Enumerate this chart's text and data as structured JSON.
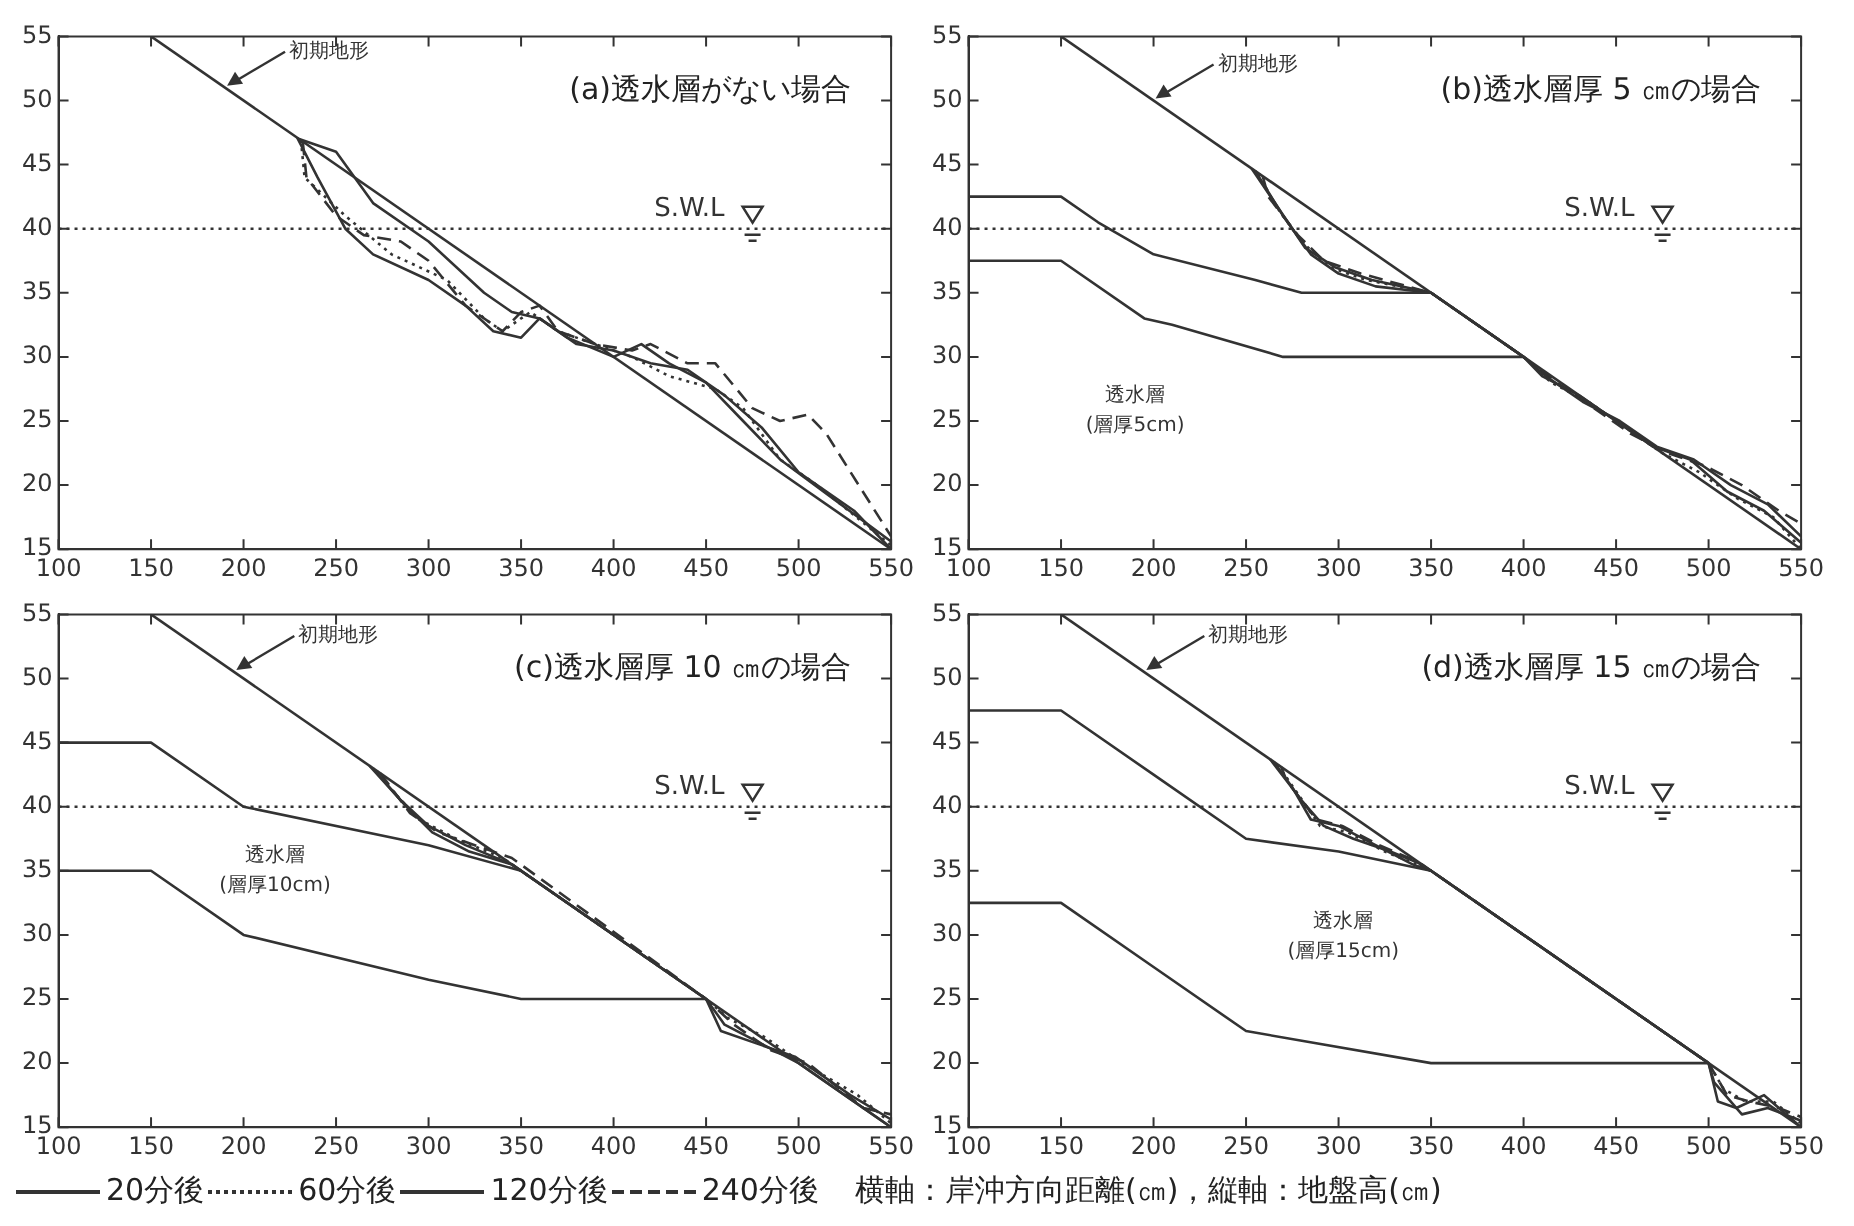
{
  "chart_data": [
    {
      "type": "line",
      "title": "(a)透水層がない場合",
      "xlim": [
        100,
        550
      ],
      "ylim": [
        15,
        55
      ],
      "xticks": [
        100,
        150,
        200,
        250,
        300,
        350,
        400,
        450,
        500,
        550
      ],
      "yticks": [
        15,
        20,
        25,
        30,
        35,
        40,
        45,
        50,
        55
      ],
      "grid": false,
      "ref_lines": [
        {
          "axis": "y",
          "value": 40,
          "label": "S.W.L",
          "line_style": "dotted",
          "color": "#333333"
        }
      ],
      "annotations": [
        {
          "text": "初期地形",
          "x": 190,
          "y": 51
        }
      ],
      "series": [
        {
          "color": "#333333",
          "line_style": "solid",
          "x": [
            150,
            550
          ],
          "values": [
            55,
            15
          ]
        },
        {
          "color": "#333333",
          "line_style": "solid",
          "x": [
            230,
            250,
            270,
            300,
            330,
            345,
            360,
            380,
            400,
            420,
            440,
            460,
            480,
            500,
            530,
            550
          ],
          "values": [
            47,
            46,
            42,
            39,
            35,
            33.5,
            33,
            31,
            30.5,
            29.5,
            29,
            27,
            24.5,
            21,
            18,
            15
          ]
        },
        {
          "color": "#333333",
          "line_style": "dotted",
          "x": [
            231,
            233,
            255,
            280,
            310,
            330,
            340,
            355,
            370,
            390,
            410,
            430,
            455,
            470,
            490,
            510,
            550
          ],
          "values": [
            46.9,
            44,
            41,
            38,
            36,
            33,
            32,
            33.5,
            32,
            31,
            30,
            28.5,
            27.5,
            26,
            22,
            20,
            15.3
          ]
        },
        {
          "color": "#333333",
          "line_style": "solid",
          "x": [
            229,
            240,
            255,
            270,
            300,
            320,
            335,
            350,
            360,
            375,
            400,
            415,
            430,
            450,
            470,
            490,
            550
          ],
          "values": [
            47.1,
            44,
            40,
            38,
            36,
            34,
            32,
            31.5,
            33,
            31.5,
            30,
            31,
            29.5,
            28,
            25,
            22,
            15.6
          ]
        },
        {
          "color": "#333333",
          "line_style": "dashed",
          "x": [
            232,
            234,
            250,
            265,
            285,
            300,
            320,
            340,
            350,
            360,
            370,
            390,
            410,
            420,
            440,
            455,
            475,
            490,
            505,
            515,
            550
          ],
          "values": [
            46.8,
            44,
            41,
            39.5,
            39,
            37.5,
            34,
            32,
            33.5,
            34,
            32,
            31,
            30.5,
            31,
            29.5,
            29.5,
            26,
            25,
            25.5,
            24,
            16
          ]
        }
      ]
    },
    {
      "type": "line",
      "title": "(b)透水層厚 5 ㎝の場合",
      "xlim": [
        100,
        550
      ],
      "ylim": [
        15,
        55
      ],
      "xticks": [
        100,
        150,
        200,
        250,
        300,
        350,
        400,
        450,
        500,
        550
      ],
      "yticks": [
        15,
        20,
        25,
        30,
        35,
        40,
        45,
        50,
        55
      ],
      "grid": false,
      "ref_lines": [
        {
          "axis": "y",
          "value": 40,
          "label": "S.W.L",
          "line_style": "dotted",
          "color": "#333333"
        }
      ],
      "annotations": [
        {
          "text": "初期地形",
          "x": 200,
          "y": 50
        },
        "透水層",
        "(層厚5cm)"
      ],
      "series": [
        {
          "color": "#333333",
          "line_style": "solid",
          "x": [
            150,
            550
          ],
          "values": [
            55,
            15
          ]
        },
        {
          "color": "#333333",
          "line_style": "solid",
          "x": [
            100,
            150,
            170,
            200,
            255,
            280,
            350
          ],
          "values": [
            42.5,
            42.5,
            40.5,
            38,
            36,
            35,
            35
          ]
        },
        {
          "color": "#333333",
          "line_style": "solid",
          "x": [
            100,
            150,
            195,
            210,
            270,
            400
          ],
          "values": [
            37.5,
            37.5,
            33,
            32.5,
            30,
            30
          ]
        },
        {
          "color": "#333333",
          "line_style": "solid",
          "x": [
            255,
            270,
            285,
            300,
            320,
            350,
            400,
            410,
            430,
            450,
            470,
            490,
            510,
            530,
            550
          ],
          "values": [
            44.5,
            41,
            38,
            36.5,
            35.5,
            35,
            30,
            28.5,
            27,
            25,
            23,
            22,
            19.5,
            18,
            15.5
          ]
        },
        {
          "color": "#333333",
          "line_style": "dotted",
          "x": [
            257,
            265,
            280,
            295,
            315,
            350,
            400,
            415,
            435,
            455,
            475,
            495,
            515,
            535,
            550
          ],
          "values": [
            44.3,
            42,
            39,
            37,
            36,
            35,
            30,
            28,
            26.5,
            24.5,
            22.5,
            21,
            19,
            17.5,
            15
          ]
        },
        {
          "color": "#333333",
          "line_style": "solid",
          "x": [
            253,
            268,
            282,
            298,
            318,
            350,
            400,
            412,
            432,
            452,
            472,
            492,
            512,
            532,
            550
          ],
          "values": [
            44.7,
            41.5,
            38.5,
            37,
            36,
            35,
            30,
            28.5,
            26.5,
            25,
            23,
            22,
            20,
            18.5,
            16
          ]
        },
        {
          "color": "#333333",
          "line_style": "dashed",
          "x": [
            259,
            262,
            278,
            292,
            312,
            350,
            400,
            418,
            438,
            458,
            478,
            498,
            518,
            538,
            550
          ],
          "values": [
            44.1,
            42.5,
            39.5,
            37.5,
            36.5,
            35,
            30,
            28,
            26,
            24,
            22.5,
            21.5,
            20,
            18,
            17
          ]
        }
      ]
    },
    {
      "type": "line",
      "title": "(c)透水層厚 10 ㎝の場合",
      "xlim": [
        100,
        550
      ],
      "ylim": [
        15,
        55
      ],
      "xticks": [
        100,
        150,
        200,
        250,
        300,
        350,
        400,
        450,
        500,
        550
      ],
      "yticks": [
        15,
        20,
        25,
        30,
        35,
        40,
        45,
        50,
        55
      ],
      "grid": false,
      "legend": "bottom",
      "ref_lines": [
        {
          "axis": "y",
          "value": 40,
          "label": "S.W.L",
          "line_style": "dotted",
          "color": "#333333"
        }
      ],
      "annotations": [
        {
          "text": "初期地形",
          "x": 195,
          "y": 50.5
        },
        "透水層",
        "(層厚10cm)"
      ],
      "series": [
        {
          "color": "#333333",
          "line_style": "solid",
          "x": [
            150,
            550
          ],
          "values": [
            55,
            15
          ]
        },
        {
          "color": "#333333",
          "line_style": "solid",
          "x": [
            100,
            150,
            200,
            300,
            350
          ],
          "values": [
            45,
            45,
            40,
            37,
            35
          ]
        },
        {
          "color": "#333333",
          "line_style": "solid",
          "x": [
            100,
            150,
            200,
            300,
            350,
            450
          ],
          "values": [
            35,
            35,
            30,
            26.5,
            25,
            25
          ]
        },
        {
          "name": "20分後",
          "color": "#333333",
          "line_style": "solid",
          "x": [
            270,
            285,
            300,
            320,
            345,
            450,
            460,
            480,
            500,
            530,
            550
          ],
          "values": [
            43,
            40.5,
            38.5,
            37,
            35.5,
            25,
            23,
            21.5,
            20,
            17,
            15
          ]
        },
        {
          "name": "60分後",
          "color": "#333333",
          "line_style": "dotted",
          "x": [
            272,
            282,
            295,
            315,
            340,
            450,
            462,
            482,
            502,
            532,
            550
          ],
          "values": [
            42.8,
            41,
            39,
            37.5,
            36,
            25,
            23.5,
            22,
            20,
            17.5,
            15.3
          ]
        },
        {
          "name": "120分後",
          "color": "#333333",
          "line_style": "solid",
          "x": [
            268,
            288,
            302,
            322,
            345,
            450,
            458,
            478,
            498,
            528,
            550
          ],
          "values": [
            43.2,
            40,
            38,
            36.5,
            35.5,
            25,
            22.5,
            21.5,
            20.5,
            17.5,
            15.6
          ]
        },
        {
          "name": "240分後",
          "color": "#333333",
          "line_style": "dashed",
          "x": [
            274,
            290,
            305,
            325,
            345,
            450,
            465,
            485,
            505,
            535,
            550
          ],
          "values": [
            42.6,
            39.5,
            38,
            37,
            36,
            25,
            23,
            21,
            20,
            16.5,
            16
          ]
        }
      ]
    },
    {
      "type": "line",
      "title": "(d)透水層厚 15 ㎝の場合",
      "xlim": [
        100,
        550
      ],
      "ylim": [
        15,
        55
      ],
      "xticks": [
        100,
        150,
        200,
        250,
        300,
        350,
        400,
        450,
        500,
        550
      ],
      "yticks": [
        15,
        20,
        25,
        30,
        35,
        40,
        45,
        50,
        55
      ],
      "grid": false,
      "xlabel": "横軸：岸沖方向距離(㎝)，縦軸：地盤高(㎝)",
      "ref_lines": [
        {
          "axis": "y",
          "value": 40,
          "label": "S.W.L",
          "line_style": "dotted",
          "color": "#333333"
        }
      ],
      "annotations": [
        {
          "text": "初期地形",
          "x": 195,
          "y": 50.5
        },
        "透水層",
        "(層厚15cm)"
      ],
      "series": [
        {
          "color": "#333333",
          "line_style": "solid",
          "x": [
            150,
            550
          ],
          "values": [
            55,
            15
          ]
        },
        {
          "color": "#333333",
          "line_style": "solid",
          "x": [
            100,
            150,
            200,
            250,
            300,
            350
          ],
          "values": [
            47.5,
            47.5,
            42.5,
            37.5,
            36.5,
            35
          ]
        },
        {
          "color": "#333333",
          "line_style": "solid",
          "x": [
            100,
            150,
            200,
            250,
            350,
            500
          ],
          "values": [
            32.5,
            32.5,
            27.5,
            22.5,
            20,
            20
          ]
        },
        {
          "color": "#333333",
          "line_style": "solid",
          "x": [
            265,
            275,
            285,
            300,
            320,
            340,
            350,
            500,
            505,
            515,
            530,
            550
          ],
          "values": [
            43.5,
            41.5,
            39,
            38.5,
            37,
            35.5,
            35,
            20,
            17,
            16.5,
            17.5,
            15
          ]
        },
        {
          "color": "#333333",
          "line_style": "dotted",
          "x": [
            267,
            278,
            290,
            305,
            325,
            342,
            350,
            500,
            508,
            520,
            535,
            550
          ],
          "values": [
            43.3,
            41,
            38.5,
            38,
            36.5,
            35.5,
            35,
            20,
            18,
            17,
            17,
            15.3
          ]
        },
        {
          "color": "#333333",
          "line_style": "solid",
          "x": [
            263,
            280,
            292,
            308,
            328,
            345,
            350,
            500,
            503,
            518,
            532,
            550
          ],
          "values": [
            43.7,
            40.5,
            38.5,
            37.5,
            36.5,
            35.5,
            35,
            20,
            18.5,
            16,
            16.5,
            15.5
          ]
        },
        {
          "color": "#333333",
          "line_style": "dashed",
          "x": [
            269,
            272,
            288,
            302,
            322,
            338,
            350,
            500,
            510,
            522,
            538,
            550
          ],
          "values": [
            43.1,
            42,
            39,
            38.5,
            37,
            36,
            35,
            20,
            17.5,
            17,
            16.5,
            15.8
          ]
        }
      ]
    }
  ]
}
